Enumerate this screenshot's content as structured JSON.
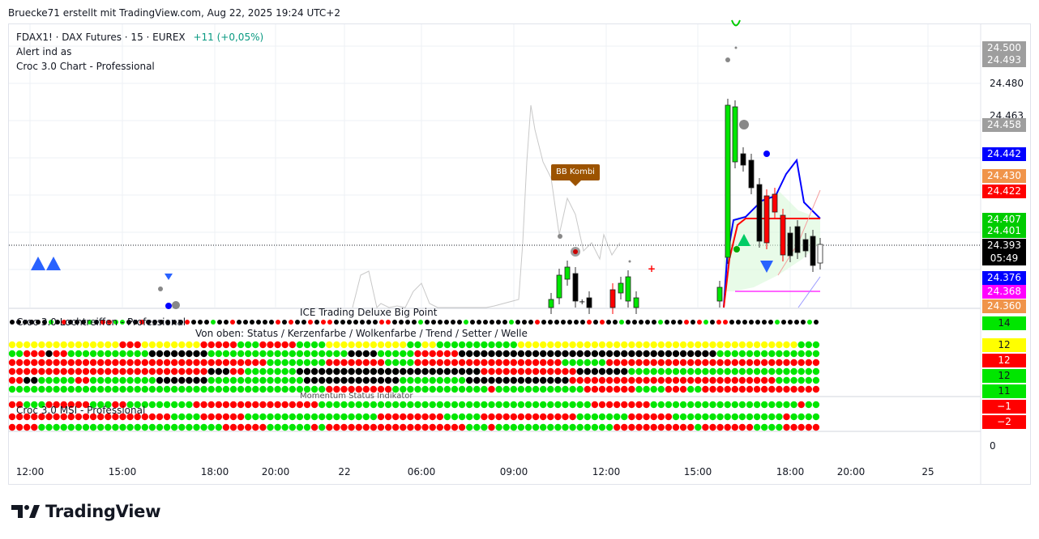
{
  "header": {
    "caption": "Bruecke71 erstellt mit TradingView.com, Aug 22, 2025 19:24 UTC+2"
  },
  "legend": {
    "symbol_line": "FDAX1! · DAX Futures · 15 · EUREX",
    "change": "+11 (+0,05%)",
    "indicator_1": "Alert ind as",
    "indicator_2": "Croc 3.0 Chart - Professional"
  },
  "callout": {
    "label": "BB Kombi"
  },
  "price_axis": {
    "labels": [
      "24.480",
      "24.463"
    ]
  },
  "price_tags": [
    {
      "value": "24.500",
      "color": "#9e9e9e"
    },
    {
      "value": "24.493",
      "color": "#9e9e9e"
    },
    {
      "value": "24.458",
      "color": "#9e9e9e"
    },
    {
      "value": "24.442",
      "color": "#0000ff"
    },
    {
      "value": "24.430",
      "color": "#f0944a"
    },
    {
      "value": "24.422",
      "color": "#ff0000"
    },
    {
      "value": "24.407",
      "color": "#00cc00"
    },
    {
      "value": "24.401",
      "color": "#00cc00"
    },
    {
      "value": "24.393",
      "color": "#000000"
    },
    {
      "value": "05:49",
      "color": "#000000"
    },
    {
      "value": "24.376",
      "color": "#0000ff"
    },
    {
      "value": "24.368",
      "color": "#ff00ff"
    },
    {
      "value": "24.360",
      "color": "#f0944a"
    }
  ],
  "last_price": {
    "value": "24.393",
    "countdown": "05:49"
  },
  "panes": {
    "pane_1_title": "Croc 3.0 Lochtreiffen - Professional",
    "pane_1_center_title": "ICE Trading Deluxe Big Point",
    "pane_1_subtitle": "Von oben: Status / Kerzenfarbe / Wolkenfarbe / Trend / Setter / Welle",
    "pane_1_hidden_label": "Momentum Status Indikator",
    "pane_2_title": "Croc 3.0 MSI - Professional",
    "pane_1_values": [
      {
        "value": "14",
        "bg": "#00e600",
        "fg": "#131722"
      },
      {
        "value": "12",
        "bg": "#ffff00",
        "fg": "#131722"
      },
      {
        "value": "12",
        "bg": "#ff0000",
        "fg": "#ffffff"
      },
      {
        "value": "12",
        "bg": "#00e600",
        "fg": "#131722"
      },
      {
        "value": "11",
        "bg": "#00e600",
        "fg": "#131722"
      }
    ],
    "pane_2_values": [
      {
        "value": "−1",
        "bg": "#ff0000",
        "fg": "#ffffff"
      },
      {
        "value": "−2",
        "bg": "#ff0000",
        "fg": "#ffffff"
      }
    ],
    "zero_label": "0"
  },
  "time_axis": {
    "labels": [
      "12:00",
      "15:00",
      "18:00",
      "20:00",
      "22",
      "06:00",
      "09:00",
      "12:00",
      "15:00",
      "18:00",
      "20:00",
      "25"
    ]
  },
  "footer": {
    "logo_text": "TradingView"
  },
  "colors": {
    "up_candle": "#00e600",
    "down_candle": "#ff0000",
    "black_candle": "#000000",
    "ma_blue": "#0000ff",
    "ma_red": "#ff0000",
    "grid": "#eef0f4"
  }
}
